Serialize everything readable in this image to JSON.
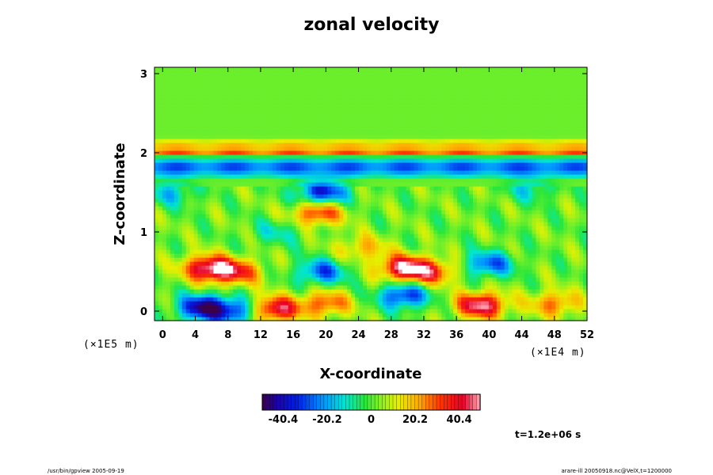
{
  "chart_data": {
    "type": "heatmap",
    "title": "zonal velocity",
    "xlabel": "X-coordinate",
    "ylabel": "Z-coordinate",
    "x_scale_label": "(×1E4 m)",
    "y_scale_label": "(×1E5 m)",
    "xlim": [
      -1,
      52
    ],
    "ylim": [
      -0.12,
      3.08
    ],
    "x_ticks": [
      0,
      4,
      8,
      12,
      16,
      20,
      24,
      28,
      32,
      36,
      40,
      44,
      48,
      52
    ],
    "y_ticks": [
      0,
      1,
      2,
      3
    ],
    "colorbar": {
      "range": [
        -50,
        50
      ],
      "ticks": [
        -40.4,
        -20.2,
        0,
        20.2,
        40.4
      ],
      "tick_labels": [
        "-40.4",
        "-20.2",
        "0",
        "20.2",
        "40.4"
      ]
    },
    "background_value": 2,
    "features": [
      {
        "x": 5.5,
        "z": 0.55,
        "value": 45
      },
      {
        "x": 9.0,
        "z": 0.5,
        "value": 32
      },
      {
        "x": 5.0,
        "z": 0.05,
        "value": -48
      },
      {
        "x": 9.0,
        "z": 0.0,
        "value": -30
      },
      {
        "x": 13.8,
        "z": 0.03,
        "value": 44
      },
      {
        "x": 20.0,
        "z": 0.1,
        "value": 28
      },
      {
        "x": 29.5,
        "z": 0.55,
        "value": 44
      },
      {
        "x": 33.0,
        "z": 0.5,
        "value": 30
      },
      {
        "x": 19.5,
        "z": 0.5,
        "value": -30
      },
      {
        "x": 29.5,
        "z": 0.2,
        "value": -36
      },
      {
        "x": 39.0,
        "z": 0.08,
        "value": 48
      },
      {
        "x": 40.0,
        "z": 0.6,
        "value": -30
      },
      {
        "x": 48.0,
        "z": 0.1,
        "value": 25
      },
      {
        "x": 19.5,
        "z": 1.5,
        "value": -40
      },
      {
        "x": 19.0,
        "z": 1.25,
        "value": 34
      },
      {
        "x": 1.0,
        "z": 1.5,
        "value": -18
      },
      {
        "x": 45.0,
        "z": 1.55,
        "value": -14
      },
      {
        "x": 14.0,
        "z": 1.0,
        "value": -12
      },
      {
        "x": 24.5,
        "z": 0.8,
        "value": 18
      }
    ],
    "layers": [
      {
        "z": 2.12,
        "value": 20
      },
      {
        "z": 2.02,
        "value": 34
      },
      {
        "z": 1.92,
        "value": -20
      },
      {
        "z": 1.83,
        "value": -40
      },
      {
        "z": 1.74,
        "value": -25
      }
    ],
    "time_label": "t=1.2e+06 s"
  },
  "footer": {
    "left": "/usr/bin/gpview 2005-09-19",
    "right": "arare-ill 20050918.nc@VelX,t=1200000"
  }
}
